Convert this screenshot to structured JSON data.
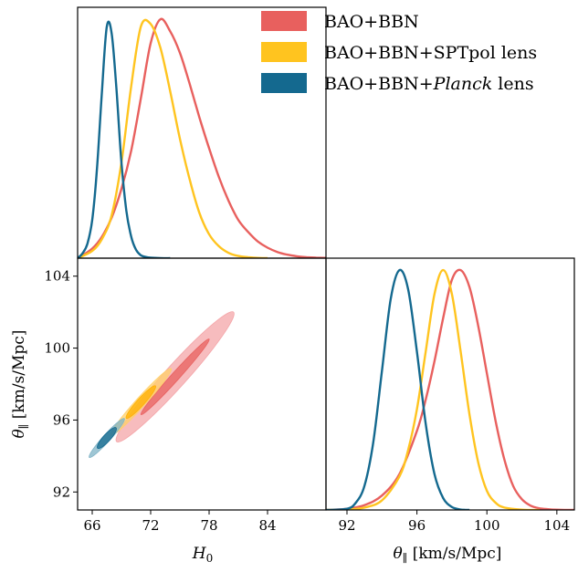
{
  "chart_data": [
    {
      "panel": "top-left",
      "type": "line",
      "xlim": [
        64.5,
        90
      ],
      "ylim": [
        0,
        1.05
      ],
      "xlabel": "",
      "ylabel": "",
      "yticks": [],
      "series": [
        {
          "name": "BAO+BBN",
          "color": "#e8605e",
          "x": [
            64.5,
            66,
            67,
            68,
            69,
            70,
            71,
            72,
            73,
            74,
            75,
            76,
            77,
            78,
            79,
            80,
            81,
            82,
            83,
            84,
            85,
            86,
            87,
            88,
            89,
            90
          ],
          "y": [
            0.0,
            0.04,
            0.09,
            0.17,
            0.29,
            0.45,
            0.67,
            0.9,
            1.0,
            0.95,
            0.86,
            0.73,
            0.59,
            0.46,
            0.34,
            0.24,
            0.16,
            0.11,
            0.07,
            0.044,
            0.026,
            0.015,
            0.008,
            0.004,
            0.002,
            0.001
          ]
        },
        {
          "name": "BAO+BBN+SPTpol lens",
          "color": "#ffc41f",
          "x": [
            64.5,
            66,
            67,
            68,
            69,
            70,
            71,
            72,
            73,
            74,
            75,
            76,
            77,
            78,
            79,
            80,
            81,
            82,
            83,
            84
          ],
          "y": [
            0.0,
            0.03,
            0.08,
            0.18,
            0.4,
            0.72,
            0.97,
            0.98,
            0.88,
            0.7,
            0.5,
            0.33,
            0.19,
            0.1,
            0.05,
            0.022,
            0.009,
            0.004,
            0.001,
            0.0
          ]
        },
        {
          "name": "BAO+BBN+Planck lens",
          "color": "#14698f",
          "x": [
            64.5,
            65,
            65.5,
            66,
            66.5,
            67,
            67.5,
            68,
            68.5,
            69,
            69.5,
            70,
            70.5,
            71,
            71.5,
            72,
            73,
            74
          ],
          "y": [
            0.0,
            0.02,
            0.06,
            0.16,
            0.38,
            0.7,
            0.97,
            0.94,
            0.7,
            0.4,
            0.2,
            0.09,
            0.035,
            0.012,
            0.005,
            0.002,
            0.0,
            0.0
          ]
        }
      ]
    },
    {
      "panel": "bottom-left",
      "type": "contour",
      "xlim": [
        64.5,
        90
      ],
      "ylim": [
        91,
        105
      ],
      "xlabel": "H_0",
      "ylabel": "θ_∥ [km/s/Mpc]",
      "xticks": [
        66,
        72,
        78,
        84
      ],
      "yticks": [
        92,
        96,
        100,
        104
      ],
      "series": [
        {
          "name": "BAO+BBN",
          "color": "#f4a5a8",
          "color_inner": "#e8605e",
          "outer": {
            "center": [
              74.5,
              98.4
            ],
            "length": 12.0,
            "width": 0.45
          },
          "inner": {
            "center": [
              74.5,
              98.4
            ],
            "length": 7.0,
            "width": 0.28
          }
        },
        {
          "name": "BAO+BBN+SPTpol lens",
          "color": "#ffd06a",
          "color_inner": "#ffb100",
          "outer": {
            "center": [
              71.0,
              97.0
            ],
            "length": 6.2,
            "width": 0.38
          },
          "inner": {
            "center": [
              71.0,
              97.0
            ],
            "length": 3.0,
            "width": 0.22
          }
        },
        {
          "name": "BAO+BBN+Planck lens",
          "color": "#7fb3c6",
          "color_inner": "#14698f",
          "outer": {
            "center": [
              67.5,
              95.0
            ],
            "length": 3.6,
            "width": 0.36
          },
          "inner": {
            "center": [
              67.5,
              95.0
            ],
            "length": 1.9,
            "width": 0.22
          }
        }
      ]
    },
    {
      "panel": "bottom-right",
      "type": "line",
      "xlim": [
        90.8,
        105
      ],
      "ylim": [
        0,
        1.05
      ],
      "xlabel": "θ_∥ [km/s/Mpc]",
      "ylabel": "",
      "xticks": [
        92,
        96,
        100,
        104
      ],
      "series": [
        {
          "name": "BAO+BBN",
          "color": "#e8605e",
          "x": [
            90.8,
            92,
            93,
            94,
            95,
            96,
            96.5,
            97,
            97.5,
            98,
            98.5,
            99,
            99.5,
            100,
            100.5,
            101,
            101.5,
            102,
            102.5,
            103,
            103.5,
            104,
            105
          ],
          "y": [
            0.0,
            0.005,
            0.02,
            0.06,
            0.15,
            0.33,
            0.46,
            0.62,
            0.8,
            0.96,
            1.0,
            0.93,
            0.77,
            0.57,
            0.37,
            0.21,
            0.1,
            0.045,
            0.018,
            0.007,
            0.003,
            0.001,
            0.0
          ]
        },
        {
          "name": "BAO+BBN+SPTpol lens",
          "color": "#ffc41f",
          "x": [
            90.8,
            92,
            93,
            94,
            95,
            95.5,
            96,
            96.5,
            97,
            97.5,
            98,
            98.5,
            99,
            99.5,
            100,
            100.5,
            101,
            102,
            103
          ],
          "y": [
            0.0,
            0.002,
            0.01,
            0.04,
            0.14,
            0.25,
            0.42,
            0.66,
            0.9,
            1.0,
            0.9,
            0.66,
            0.4,
            0.2,
            0.08,
            0.03,
            0.01,
            0.001,
            0.0
          ]
        },
        {
          "name": "BAO+BBN+Planck lens",
          "color": "#14698f",
          "x": [
            90.8,
            92,
            92.5,
            93,
            93.5,
            94,
            94.5,
            95,
            95.5,
            96,
            96.5,
            97,
            97.5,
            98,
            98.5,
            99
          ],
          "y": [
            0.0,
            0.005,
            0.03,
            0.1,
            0.28,
            0.58,
            0.88,
            1.0,
            0.92,
            0.66,
            0.36,
            0.15,
            0.05,
            0.012,
            0.002,
            0.0
          ]
        }
      ]
    }
  ],
  "legend": {
    "placement": "top-right",
    "entries": [
      {
        "label": "BAO+BBN",
        "color": "#e8605e",
        "italic_word": ""
      },
      {
        "label": "BAO+BBN+SPTpol lens",
        "color": "#ffc41f",
        "italic_word": ""
      },
      {
        "label_prefix": "BAO+BBN+",
        "label_italic": "Planck",
        "label_suffix": " lens",
        "color": "#14698f"
      }
    ]
  },
  "labels": {
    "x_bottom_left": "H",
    "x_bottom_left_sub": "0",
    "y_bottom_left": "θ",
    "y_bottom_left_sub": "∥",
    "y_bottom_left_unit": " [km/s/Mpc]",
    "x_bottom_right": "θ",
    "x_bottom_right_sub": "∥",
    "x_bottom_right_unit": " [km/s/Mpc]"
  }
}
